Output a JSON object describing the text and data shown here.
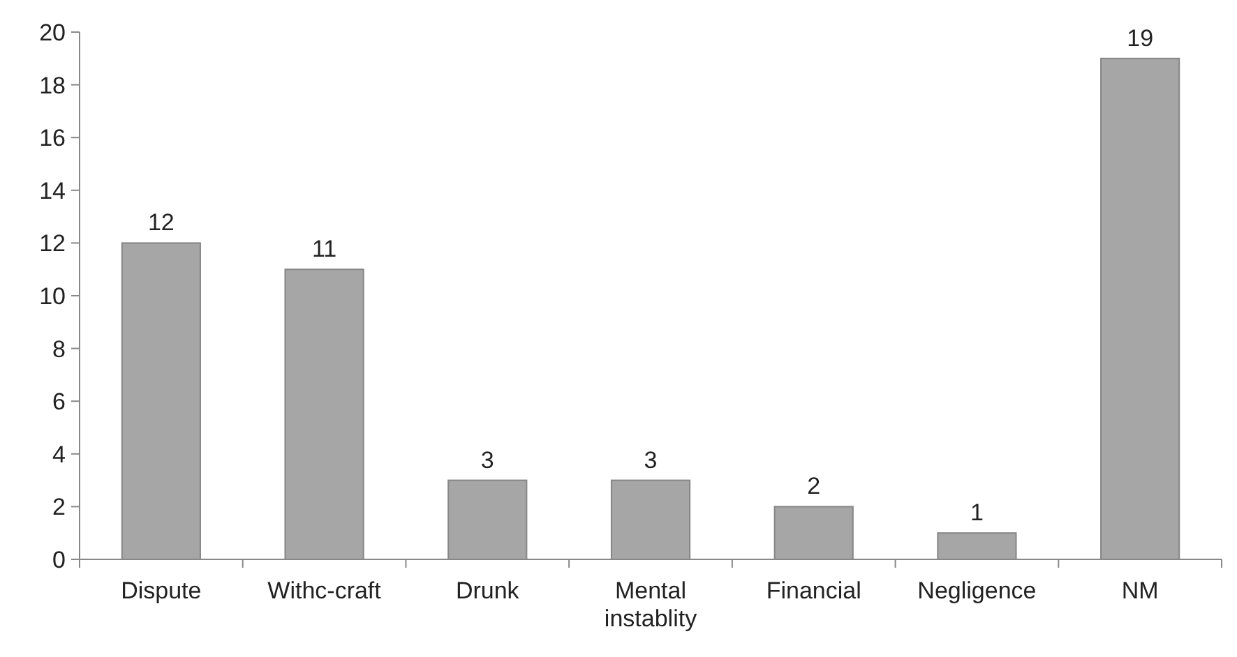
{
  "chart_data": {
    "type": "bar",
    "categories": [
      "Dispute",
      "Withc-craft",
      "Drunk",
      "Mental instablity",
      "Financial",
      "Negligence",
      "NM"
    ],
    "values": [
      12,
      11,
      3,
      3,
      2,
      1,
      19
    ],
    "color": "#a6a6a6",
    "ylim": [
      0,
      20
    ],
    "yticks": [
      0,
      2,
      4,
      6,
      8,
      10,
      12,
      14,
      16,
      18,
      20
    ],
    "data_labels": true
  }
}
